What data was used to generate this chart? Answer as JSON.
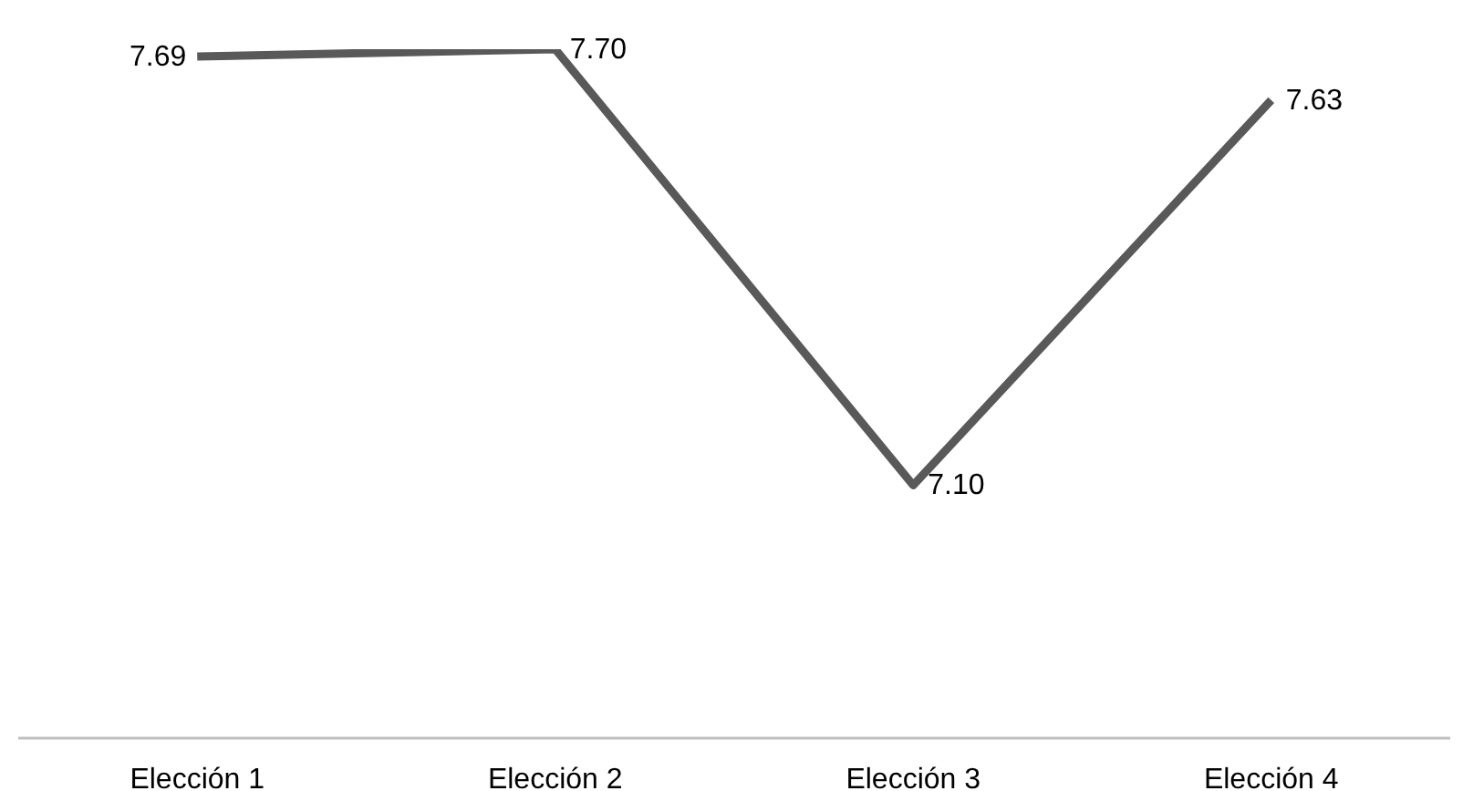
{
  "chart_data": {
    "type": "line",
    "categories": [
      "Elección 1",
      "Elección 2",
      "Elección 3",
      "Elección 4"
    ],
    "series": [
      {
        "color": "#595959",
        "values": [
          7.69,
          7.7,
          7.1,
          7.63
        ],
        "value_labels": [
          "7.69",
          "7.70",
          "7.10",
          "7.63"
        ]
      }
    ],
    "tick_labels": "x",
    "grid": false,
    "legend": false,
    "marker": "none",
    "line_style": "solid"
  }
}
